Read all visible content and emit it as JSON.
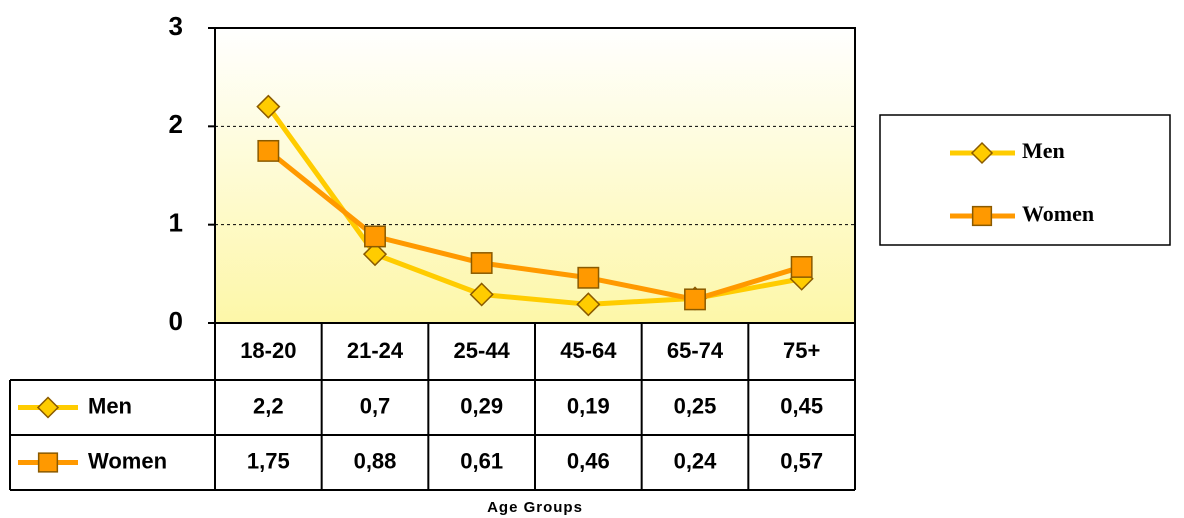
{
  "chart_data": {
    "type": "line",
    "x_label": "Age Groups",
    "categories": [
      "18-20",
      "21-24",
      "25-44",
      "45-64",
      "65-74",
      "75+"
    ],
    "series": [
      {
        "name": "Men",
        "color": "#FFCC00",
        "marker": "diamond",
        "values": [
          2.2,
          0.7,
          0.29,
          0.19,
          0.25,
          0.45
        ],
        "value_labels": [
          "2,2",
          "0,7",
          "0,29",
          "0,19",
          "0,25",
          "0,45"
        ]
      },
      {
        "name": "Women",
        "color": "#FF9900",
        "marker": "square",
        "values": [
          1.75,
          0.88,
          0.61,
          0.46,
          0.24,
          0.57
        ],
        "value_labels": [
          "1,75",
          "0,88",
          "0,61",
          "0,46",
          "0,24",
          "0,57"
        ]
      }
    ],
    "ylim": [
      0,
      3
    ],
    "yticks": [
      0,
      1,
      2,
      3
    ],
    "grid": true,
    "legend": "right"
  }
}
